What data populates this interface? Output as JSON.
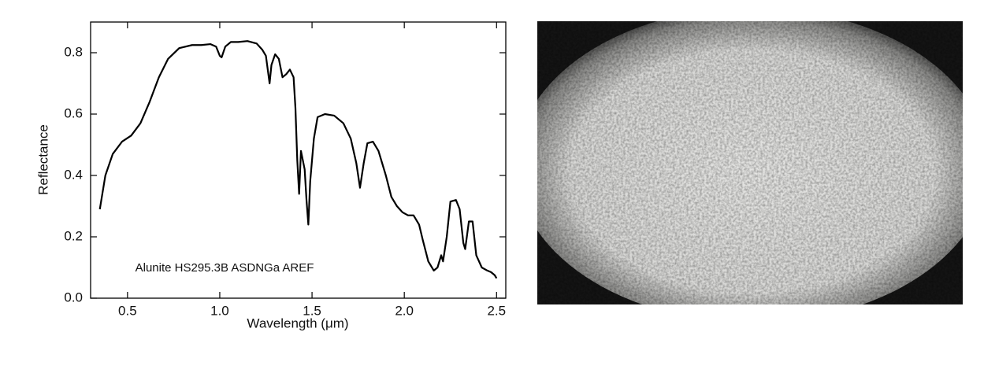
{
  "chart_data": {
    "type": "line",
    "annotation": "Alunite HS295.3B ASDNGa AREF",
    "x_label": "Wavelength (μm)",
    "y_label": "Reflectance",
    "xlim": [
      0.3,
      2.55
    ],
    "ylim": [
      0,
      0.9
    ],
    "xticks": [
      0.5,
      {
        "value": 1,
        "label": "1.0"
      },
      1.5,
      {
        "value": 2,
        "label": "2.0"
      },
      2.5
    ],
    "yticks": [
      {
        "value": 0,
        "label": "0.0"
      },
      0.2,
      0.4,
      0.6,
      0.8
    ],
    "series": [
      {
        "color": "#000000",
        "x": [
          0.35,
          0.38,
          0.42,
          0.47,
          0.52,
          0.57,
          0.62,
          0.67,
          0.72,
          0.78,
          0.85,
          0.9,
          0.95,
          0.98,
          1.0,
          1.01,
          1.03,
          1.06,
          1.1,
          1.15,
          1.2,
          1.23,
          1.25,
          1.27,
          1.28,
          1.3,
          1.32,
          1.34,
          1.36,
          1.38,
          1.4,
          1.41,
          1.42,
          1.43,
          1.44,
          1.46,
          1.47,
          1.48,
          1.49,
          1.51,
          1.53,
          1.57,
          1.62,
          1.67,
          1.71,
          1.74,
          1.76,
          1.78,
          1.8,
          1.83,
          1.86,
          1.9,
          1.93,
          1.96,
          1.99,
          2.02,
          2.05,
          2.08,
          2.1,
          2.13,
          2.16,
          2.18,
          2.2,
          2.21,
          2.23,
          2.25,
          2.28,
          2.3,
          2.32,
          2.33,
          2.35,
          2.37,
          2.39,
          2.42,
          2.45,
          2.47,
          2.49,
          2.5
        ],
        "values": [
          0.29,
          0.4,
          0.47,
          0.51,
          0.53,
          0.57,
          0.64,
          0.72,
          0.78,
          0.815,
          0.825,
          0.825,
          0.828,
          0.82,
          0.79,
          0.785,
          0.82,
          0.835,
          0.835,
          0.838,
          0.83,
          0.81,
          0.79,
          0.7,
          0.76,
          0.795,
          0.78,
          0.72,
          0.73,
          0.745,
          0.72,
          0.62,
          0.45,
          0.34,
          0.48,
          0.42,
          0.32,
          0.24,
          0.38,
          0.52,
          0.59,
          0.6,
          0.595,
          0.57,
          0.52,
          0.44,
          0.36,
          0.44,
          0.505,
          0.51,
          0.48,
          0.4,
          0.33,
          0.3,
          0.28,
          0.27,
          0.27,
          0.24,
          0.19,
          0.12,
          0.09,
          0.1,
          0.14,
          0.12,
          0.2,
          0.315,
          0.32,
          0.29,
          0.18,
          0.16,
          0.25,
          0.25,
          0.14,
          0.1,
          0.09,
          0.085,
          0.075,
          0.065
        ]
      }
    ]
  }
}
